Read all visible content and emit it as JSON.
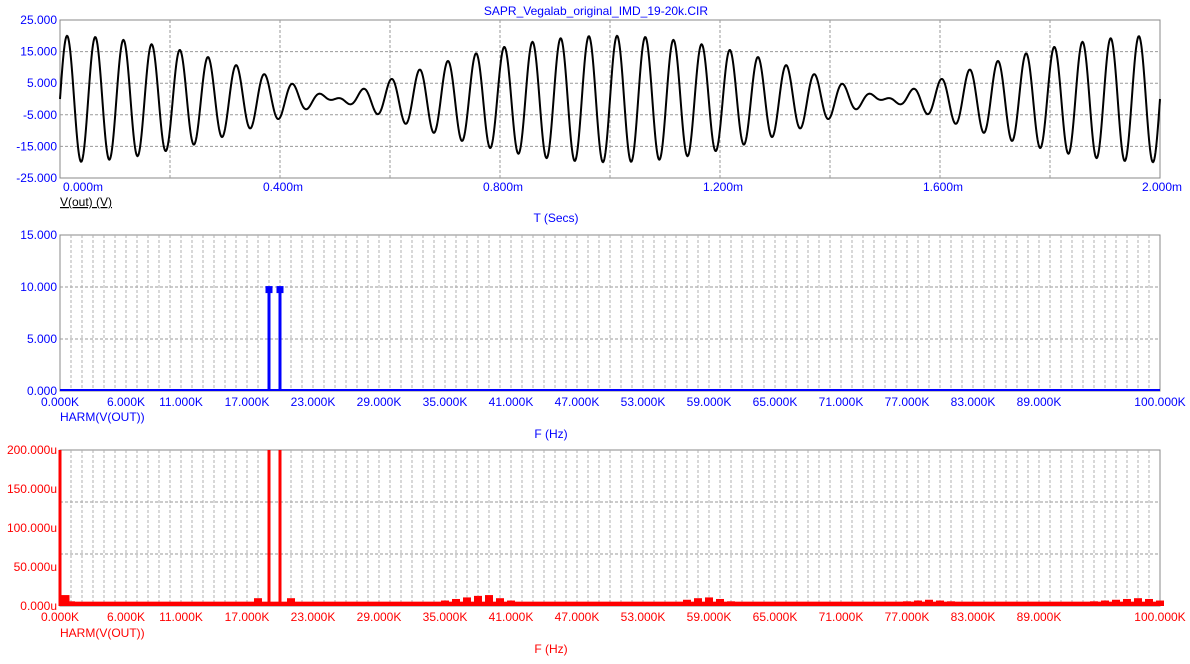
{
  "window_title": "SAPR_Vegalab_original_IMD_19-20k.CIR",
  "colors": {
    "black": "#000000",
    "blue": "#0000ff",
    "red": "#ff0000",
    "grid": "#9a9a9a"
  },
  "chart_data": [
    {
      "type": "line",
      "id": "time",
      "title": "SAPR_Vegalab_original_IMD_19-20k.CIR",
      "xlabel": "T (Secs)",
      "trace_label": "V(out) (V)",
      "ylim": [
        -25,
        25
      ],
      "xlim": [
        0,
        0.002
      ],
      "yticks": [
        "25.000",
        "15.000",
        "5.000",
        "-5.000",
        "-15.000",
        "-25.000"
      ],
      "xticks": [
        "0.000m",
        "0.400m",
        "0.800m",
        "1.200m",
        "1.600m",
        "2.000m"
      ],
      "signal": {
        "tones_hz": [
          19000,
          20000
        ],
        "amplitude_each": 10,
        "peak": 20
      },
      "color": "#000000"
    },
    {
      "type": "bar",
      "id": "spectrum_linear",
      "xlabel": "F (Hz)",
      "trace_label": "HARM(V(OUT))",
      "ylim": [
        0,
        15
      ],
      "xlim": [
        0,
        100000
      ],
      "yticks": [
        "15.000",
        "10.000",
        "5.000",
        "0.000"
      ],
      "xticks": [
        "0.000K",
        "6.000K",
        "11.000K",
        "17.000K",
        "23.000K",
        "29.000K",
        "35.000K",
        "41.000K",
        "47.000K",
        "53.000K",
        "59.000K",
        "65.000K",
        "71.000K",
        "77.000K",
        "83.000K",
        "89.000K",
        "100.000K"
      ],
      "x": [
        19000,
        20000
      ],
      "values": [
        9.8,
        9.8
      ],
      "color": "#0000ff"
    },
    {
      "type": "bar",
      "id": "spectrum_zoom",
      "xlabel": "F (Hz)",
      "trace_label": "HARM(V(OUT))",
      "ylim": [
        0,
        200
      ],
      "yunit": "u",
      "xlim": [
        0,
        100000
      ],
      "yticks": [
        "200.000u",
        "150.000u",
        "100.000u",
        "50.000u",
        "0.000u"
      ],
      "xticks": [
        "0.000K",
        "6.000K",
        "11.000K",
        "17.000K",
        "23.000K",
        "29.000K",
        "35.000K",
        "41.000K",
        "47.000K",
        "53.000K",
        "59.000K",
        "65.000K",
        "71.000K",
        "77.000K",
        "83.000K",
        "89.000K",
        "100.000K"
      ],
      "x": [
        0,
        500,
        1000,
        2000,
        3000,
        17000,
        18000,
        19000,
        20000,
        21000,
        22000,
        34000,
        35000,
        36000,
        37000,
        38000,
        39000,
        40000,
        41000,
        42000,
        43000,
        56000,
        57000,
        58000,
        59000,
        60000,
        61000,
        62000,
        76000,
        77000,
        78000,
        79000,
        80000,
        81000,
        82000,
        93000,
        94000,
        95000,
        96000,
        97000,
        98000,
        99000,
        100000
      ],
      "values": [
        200,
        14,
        6,
        4,
        3,
        5,
        10,
        200,
        200,
        10,
        4,
        5,
        7,
        9,
        11,
        13,
        14,
        10,
        7,
        5,
        4,
        5,
        8,
        10,
        11,
        9,
        6,
        4,
        4,
        6,
        7,
        8,
        7,
        6,
        4,
        5,
        6,
        7,
        8,
        9,
        10,
        9,
        7
      ],
      "baseline": 3,
      "color": "#ff0000"
    }
  ]
}
